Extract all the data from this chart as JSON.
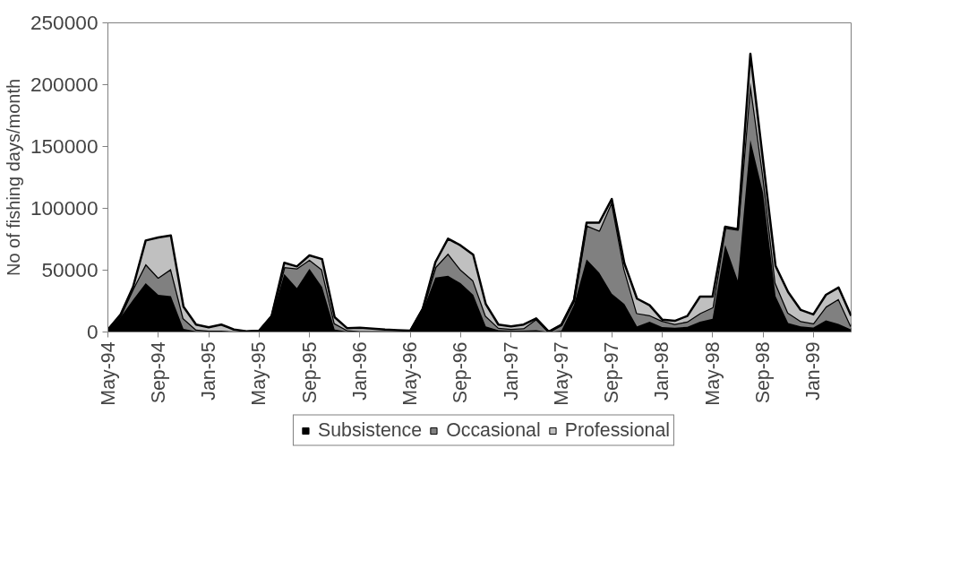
{
  "chart_data": {
    "type": "area",
    "stacked": true,
    "ylabel": "No of fishing days/month",
    "x": [
      "1994-05",
      "1994-06",
      "1994-07",
      "1994-08",
      "1994-09",
      "1994-10",
      "1994-11",
      "1994-12",
      "1995-01",
      "1995-02",
      "1995-03",
      "1995-04",
      "1995-05",
      "1995-06",
      "1995-07",
      "1995-08",
      "1995-09",
      "1995-10",
      "1995-11",
      "1995-12",
      "1996-01",
      "1996-02",
      "1996-03",
      "1996-04",
      "1996-05",
      "1996-06",
      "1996-07",
      "1996-08",
      "1996-09",
      "1996-10",
      "1996-11",
      "1996-12",
      "1997-01",
      "1997-02",
      "1997-03",
      "1997-04",
      "1997-05",
      "1997-06",
      "1997-07",
      "1997-08",
      "1997-09",
      "1997-10",
      "1997-11",
      "1997-12",
      "1998-01",
      "1998-02",
      "1998-03",
      "1998-04",
      "1998-05",
      "1998-06",
      "1998-07",
      "1998-08",
      "1998-09",
      "1998-10",
      "1998-11",
      "1998-12",
      "1999-01",
      "1999-02",
      "1999-03",
      "1999-04"
    ],
    "series": [
      {
        "name": "Subsistence",
        "color": "#000000",
        "values": [
          1500,
          12000,
          26000,
          39500,
          30000,
          29000,
          2500,
          500,
          300,
          300,
          200,
          100,
          500,
          12000,
          47000,
          35500,
          51000,
          36500,
          2000,
          300,
          300,
          300,
          300,
          200,
          200,
          17500,
          44000,
          45500,
          39500,
          30000,
          4500,
          1500,
          1000,
          1000,
          1500,
          0,
          1000,
          22000,
          58700,
          48000,
          31000,
          22600,
          4600,
          8300,
          4000,
          3500,
          4200,
          8300,
          10600,
          70400,
          41700,
          155200,
          112800,
          29000,
          7300,
          4600,
          3700,
          9500,
          6500,
          2000
        ]
      },
      {
        "name": "Occasional",
        "color": "#808080",
        "values": [
          300,
          1000,
          9000,
          15500,
          14000,
          22000,
          8500,
          1500,
          700,
          700,
          300,
          100,
          200,
          500,
          5500,
          16000,
          7500,
          14000,
          5000,
          1200,
          500,
          500,
          500,
          300,
          300,
          1000,
          8500,
          18000,
          11000,
          11700,
          8500,
          2000,
          1500,
          2000,
          9000,
          0,
          4500,
          3000,
          27500,
          34000,
          74500,
          28200,
          10700,
          5300,
          5000,
          3000,
          4300,
          7000,
          9400,
          13800,
          41000,
          46600,
          14800,
          10600,
          8300,
          4300,
          3300,
          11100,
          20400,
          2600
        ]
      },
      {
        "name": "Professional",
        "color": "#c0c0c0",
        "values": [
          200,
          1000,
          1500,
          19000,
          32500,
          27000,
          9500,
          4000,
          2800,
          5000,
          1500,
          300,
          300,
          500,
          3500,
          1500,
          3500,
          8500,
          5000,
          1500,
          2700,
          2000,
          1200,
          1000,
          500,
          500,
          4000,
          12000,
          19500,
          20800,
          9500,
          2500,
          2000,
          3000,
          500,
          300,
          500,
          1000,
          2200,
          6400,
          2000,
          4700,
          11700,
          8000,
          1000,
          2500,
          4500,
          13300,
          8600,
          1000,
          500,
          23200,
          11700,
          13800,
          16600,
          8900,
          7200,
          9500,
          9100,
          8400
        ]
      }
    ],
    "xlim": [
      "1994-05",
      "1999-04"
    ],
    "xticks": [
      {
        "value": "1994-05",
        "label": "May-94"
      },
      {
        "value": "1994-09",
        "label": "Sep-94"
      },
      {
        "value": "1995-01",
        "label": "Jan-95"
      },
      {
        "value": "1995-05",
        "label": "May-95"
      },
      {
        "value": "1995-09",
        "label": "Sep-95"
      },
      {
        "value": "1996-01",
        "label": "Jan-96"
      },
      {
        "value": "1996-05",
        "label": "May-96"
      },
      {
        "value": "1996-09",
        "label": "Sep-96"
      },
      {
        "value": "1997-01",
        "label": "Jan-97"
      },
      {
        "value": "1997-05",
        "label": "May-97"
      },
      {
        "value": "1997-09",
        "label": "Sep-97"
      },
      {
        "value": "1998-01",
        "label": "Jan-98"
      },
      {
        "value": "1998-05",
        "label": "May-98"
      },
      {
        "value": "1998-09",
        "label": "Sep-98"
      },
      {
        "value": "1999-01",
        "label": "Jan-99"
      }
    ],
    "ylim": [
      0,
      250000
    ],
    "yticks": [
      0,
      50000,
      100000,
      150000,
      200000,
      250000
    ],
    "grid": false,
    "legend": "bottom"
  }
}
